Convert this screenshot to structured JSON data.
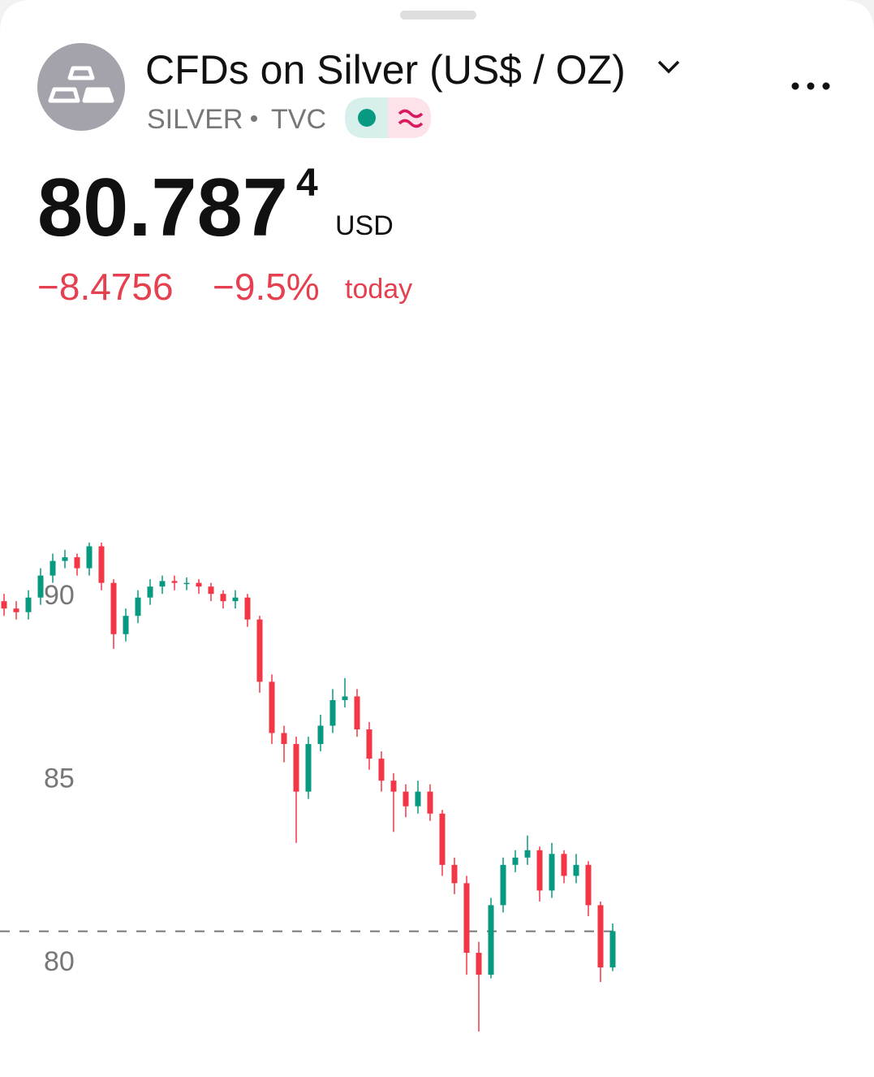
{
  "header": {
    "title": "CFDs on Silver (US$ / OZ)",
    "symbol": "SILVER",
    "exchange": "TVC",
    "price": "80.787",
    "price_fraction": "4",
    "currency": "USD",
    "change": "−8.4756",
    "change_percent": "−9.5%",
    "period": "today"
  },
  "chart_data": {
    "type": "candlestick",
    "open": [
      89.8,
      89.6,
      89.5,
      89.9,
      90.5,
      90.9,
      91.0,
      90.7,
      91.3,
      90.3,
      88.9,
      89.4,
      89.9,
      90.2,
      90.35,
      90.3,
      90.3,
      90.2,
      90.0,
      89.8,
      89.9,
      89.3,
      87.6,
      86.2,
      85.9,
      84.6,
      85.9,
      86.4,
      87.1,
      87.2,
      86.3,
      85.5,
      84.9,
      84.6,
      84.2,
      84.6,
      84.0,
      82.6,
      82.1,
      80.2,
      79.6,
      81.5,
      82.6,
      82.8,
      83.0,
      81.9,
      82.9,
      82.3,
      82.6,
      81.5,
      79.8
    ],
    "high": [
      90.0,
      89.8,
      90.1,
      90.7,
      91.1,
      91.2,
      91.1,
      91.4,
      91.4,
      90.4,
      89.6,
      90.1,
      90.4,
      90.5,
      90.5,
      90.45,
      90.4,
      90.3,
      90.1,
      90.1,
      90.0,
      89.4,
      87.8,
      86.4,
      86.1,
      86.1,
      86.7,
      87.4,
      87.7,
      87.4,
      86.5,
      85.7,
      85.1,
      84.8,
      84.9,
      84.8,
      84.1,
      82.8,
      82.3,
      80.5,
      81.7,
      82.8,
      83.0,
      83.4,
      83.1,
      83.2,
      83.0,
      82.9,
      82.7,
      81.6,
      81.0
    ],
    "low": [
      89.4,
      89.3,
      89.3,
      89.7,
      90.3,
      90.7,
      90.5,
      90.5,
      90.1,
      88.5,
      88.7,
      89.2,
      89.7,
      90.0,
      90.1,
      90.1,
      90.0,
      89.8,
      89.6,
      89.6,
      89.1,
      87.3,
      85.9,
      85.4,
      83.2,
      84.4,
      85.7,
      86.2,
      86.9,
      86.1,
      85.2,
      84.6,
      83.5,
      83.9,
      84.0,
      83.8,
      82.3,
      81.8,
      79.6,
      78.05,
      79.5,
      81.3,
      82.4,
      82.6,
      81.6,
      81.7,
      82.1,
      82.1,
      81.2,
      79.4,
      79.7
    ],
    "close": [
      89.6,
      89.5,
      89.9,
      90.5,
      90.9,
      91.0,
      90.7,
      91.3,
      90.3,
      88.9,
      89.4,
      89.9,
      90.2,
      90.35,
      90.3,
      90.3,
      90.2,
      90.0,
      89.8,
      89.9,
      89.3,
      87.6,
      86.2,
      85.9,
      84.6,
      85.9,
      86.4,
      87.1,
      87.2,
      86.3,
      85.5,
      84.9,
      84.6,
      84.2,
      84.6,
      84.0,
      82.6,
      82.1,
      80.2,
      79.6,
      81.5,
      82.6,
      82.8,
      83.0,
      81.9,
      82.9,
      82.3,
      82.6,
      81.5,
      79.8,
      80.79
    ],
    "up_color": "#089981",
    "down_color": "#f23645",
    "price_line": 80.7874,
    "ylim": [
      77.4,
      92
    ],
    "yticks": [
      90,
      85,
      80
    ]
  }
}
